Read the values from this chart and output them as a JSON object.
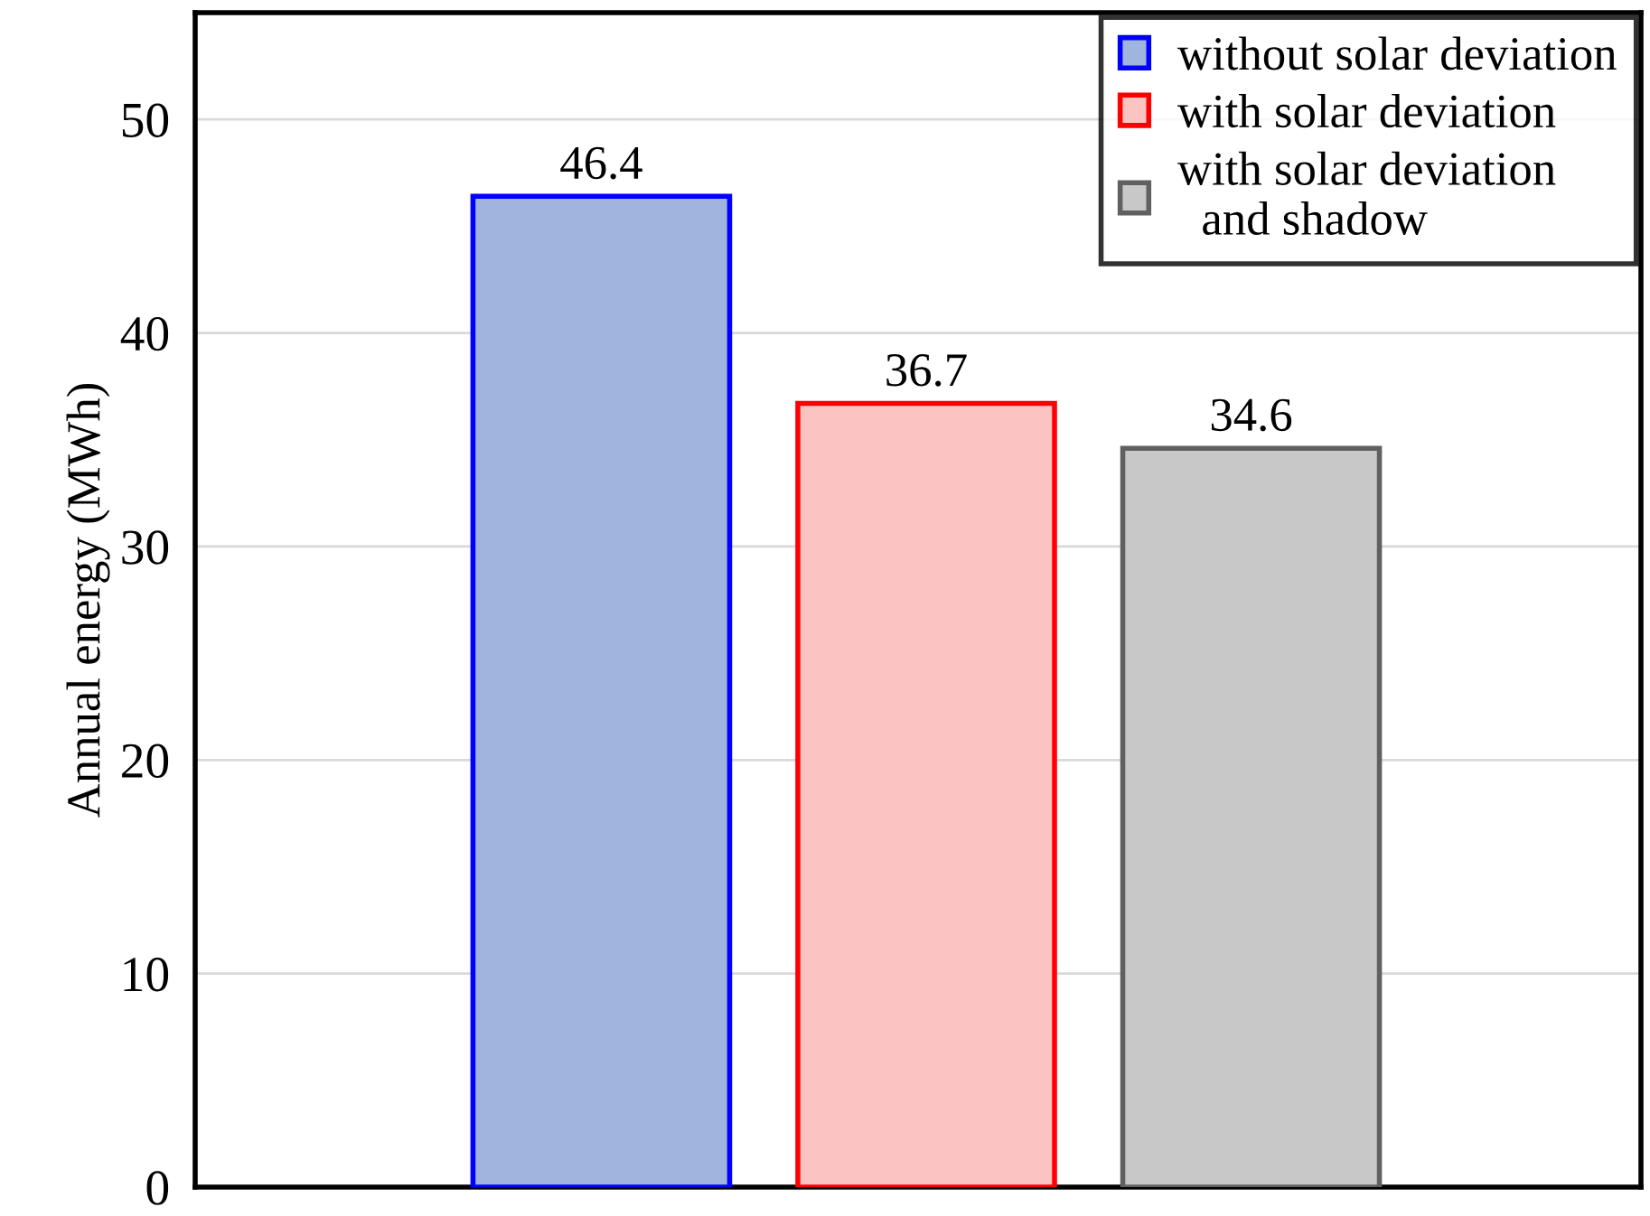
{
  "chart_data": {
    "type": "bar",
    "ylabel": "Annual energy (MWh)",
    "categories": [
      null,
      null,
      null
    ],
    "series": [
      {
        "name": "without solar deviation",
        "color": "#a0b5de",
        "values": [
          46.4,
          null,
          null
        ]
      },
      {
        "name": "with solar deviation",
        "color": "#fcc3c3",
        "values": [
          null,
          36.7,
          null
        ]
      },
      {
        "name": "with solar deviation\n  and shadow",
        "color": "#c8c8c8",
        "values": [
          null,
          null,
          34.6
        ]
      }
    ],
    "ylim": [
      0,
      55
    ],
    "yticks": [
      0,
      10,
      20,
      30,
      40,
      50
    ],
    "grid": "y",
    "legend": "top right",
    "data_labels": true
  }
}
